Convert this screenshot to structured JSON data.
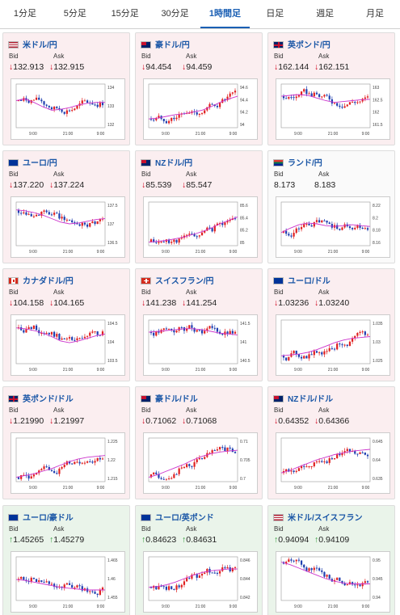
{
  "tabs": [
    {
      "label": "1分足",
      "active": false
    },
    {
      "label": "5分足",
      "active": false
    },
    {
      "label": "15分足",
      "active": false
    },
    {
      "label": "30分足",
      "active": false
    },
    {
      "label": "1時間足",
      "active": true
    },
    {
      "label": "日足",
      "active": false
    },
    {
      "label": "週足",
      "active": false
    },
    {
      "label": "月足",
      "active": false
    }
  ],
  "bid_label": "Bid",
  "ask_label": "Ask",
  "down_arrow": "↓",
  "up_arrow": "↑",
  "colors": {
    "down": "#d0021b",
    "up": "#2e9b36",
    "link": "#1a56a6",
    "ma": "#cc33cc",
    "candle_up": "#e02020",
    "candle_down": "#1f3fb0"
  },
  "pairs": [
    {
      "name": "米ドル/円",
      "flag": "us",
      "dir": "down",
      "bid": "132.913",
      "ask": "132.915",
      "yticks": [
        "134",
        "133",
        "132"
      ],
      "xticks": [
        "9:00",
        "21:00",
        "9:00"
      ],
      "ma": [
        0.62,
        0.66,
        0.58,
        0.48,
        0.4,
        0.42,
        0.46,
        0.52,
        0.56,
        0.58,
        0.58
      ]
    },
    {
      "name": "豪ドル/円",
      "flag": "au",
      "dir": "down",
      "bid": "94.454",
      "ask": "94.459",
      "yticks": [
        "94.6",
        "94.4",
        "94.2",
        "94"
      ],
      "xticks": [
        "9:00",
        "21:00",
        "9:00"
      ],
      "ma": [
        0.2,
        0.22,
        0.26,
        0.3,
        0.32,
        0.36,
        0.4,
        0.48,
        0.58,
        0.66,
        0.72
      ]
    },
    {
      "name": "英ポンド/円",
      "flag": "uk",
      "dir": "down",
      "bid": "162.144",
      "ask": "162.151",
      "yticks": [
        "163",
        "162.5",
        "162",
        "161.5"
      ],
      "xticks": [
        "9:00",
        "21:00",
        "9:00"
      ],
      "ma": [
        0.72,
        0.74,
        0.76,
        0.74,
        0.68,
        0.62,
        0.58,
        0.6,
        0.62,
        0.64,
        0.65
      ]
    },
    {
      "name": "ユーロ/円",
      "flag": "eu",
      "dir": "down",
      "bid": "137.220",
      "ask": "137.224",
      "yticks": [
        "137.5",
        "137",
        "136.5"
      ],
      "xticks": [
        "9:00",
        "21:00",
        "9:00"
      ],
      "ma": [
        0.82,
        0.8,
        0.76,
        0.7,
        0.62,
        0.54,
        0.5,
        0.52,
        0.56,
        0.6,
        0.62
      ]
    },
    {
      "name": "NZドル/円",
      "flag": "nz",
      "dir": "down",
      "bid": "85.539",
      "ask": "85.547",
      "yticks": [
        "85.6",
        "85.4",
        "85.2",
        "85"
      ],
      "xticks": [
        "9:00",
        "21:00",
        "9:00"
      ],
      "ma": [
        0.08,
        0.1,
        0.12,
        0.16,
        0.2,
        0.26,
        0.32,
        0.4,
        0.5,
        0.58,
        0.66
      ]
    },
    {
      "name": "ランド/円",
      "flag": "za",
      "dir": "neutral",
      "bid": "8.173",
      "ask": "8.183",
      "yticks": [
        "8.22",
        "8.2",
        "8.18",
        "8.16"
      ],
      "xticks": [
        "9:00",
        "21:00",
        "9:00"
      ],
      "ma": [
        0.3,
        0.4,
        0.48,
        0.52,
        0.5,
        0.46,
        0.44,
        0.46,
        0.48,
        0.46,
        0.44
      ]
    },
    {
      "name": "カナダドル/円",
      "flag": "ca",
      "dir": "down",
      "bid": "104.158",
      "ask": "104.165",
      "yticks": [
        "104.5",
        "104",
        "103.5"
      ],
      "xticks": [
        "9:00",
        "21:00",
        "9:00"
      ],
      "ma": [
        0.82,
        0.8,
        0.76,
        0.7,
        0.62,
        0.52,
        0.48,
        0.52,
        0.58,
        0.64,
        0.68
      ]
    },
    {
      "name": "スイスフラン/円",
      "flag": "ch",
      "dir": "down",
      "bid": "141.238",
      "ask": "141.254",
      "yticks": [
        "141.5",
        "141",
        "140.5"
      ],
      "xticks": [
        "9:00",
        "21:00",
        "9:00"
      ],
      "ma": [
        0.72,
        0.74,
        0.76,
        0.78,
        0.8,
        0.8,
        0.78,
        0.74,
        0.7,
        0.68,
        0.66
      ]
    },
    {
      "name": "ユーロ/ドル",
      "flag": "eu",
      "dir": "down",
      "bid": "1.03236",
      "ask": "1.03240",
      "yticks": [
        "1.035",
        "1.03",
        "1.025"
      ],
      "xticks": [
        "9:00",
        "21:00",
        "9:00"
      ],
      "ma": [
        0.18,
        0.2,
        0.22,
        0.26,
        0.32,
        0.4,
        0.48,
        0.54,
        0.58,
        0.6,
        0.62
      ]
    },
    {
      "name": "英ポンド/ドル",
      "flag": "uk",
      "dir": "down",
      "bid": "1.21990",
      "ask": "1.21997",
      "yticks": [
        "1.225",
        "1.22",
        "1.215"
      ],
      "xticks": [
        "9:00",
        "21:00",
        "9:00"
      ],
      "ma": [
        0.1,
        0.14,
        0.18,
        0.24,
        0.3,
        0.38,
        0.46,
        0.52,
        0.56,
        0.58,
        0.6
      ]
    },
    {
      "name": "豪ドル/ドル",
      "flag": "au",
      "dir": "down",
      "bid": "0.71062",
      "ask": "0.71068",
      "yticks": [
        "0.71",
        "0.705",
        "0.7"
      ],
      "xticks": [
        "9:00",
        "21:00",
        "9:00"
      ],
      "ma": [
        0.1,
        0.16,
        0.24,
        0.32,
        0.4,
        0.5,
        0.58,
        0.64,
        0.68,
        0.7,
        0.72
      ]
    },
    {
      "name": "NZドル/ドル",
      "flag": "nz",
      "dir": "down",
      "bid": "0.64352",
      "ask": "0.64366",
      "yticks": [
        "0.645",
        "0.64",
        "0.635"
      ],
      "xticks": [
        "9:00",
        "21:00",
        "9:00"
      ],
      "ma": [
        0.2,
        0.26,
        0.34,
        0.42,
        0.5,
        0.56,
        0.62,
        0.66,
        0.7,
        0.72,
        0.74
      ]
    },
    {
      "name": "ユーロ/豪ドル",
      "flag": "eu",
      "dir": "up",
      "bid": "1.45265",
      "ask": "1.45279",
      "yticks": [
        "1.465",
        "1.46",
        "1.455"
      ],
      "xticks": [
        "9:00",
        "21:00",
        "9:00"
      ],
      "ma": [
        0.48,
        0.46,
        0.42,
        0.38,
        0.34,
        0.3,
        0.28,
        0.26,
        0.24,
        0.24,
        0.24
      ]
    },
    {
      "name": "ユーロ/英ポンド",
      "flag": "eu",
      "dir": "up",
      "bid": "0.84623",
      "ask": "0.84631",
      "yticks": [
        "0.846",
        "0.844",
        "0.842"
      ],
      "xticks": [
        "9:00",
        "21:00",
        "9:00"
      ],
      "ma": [
        0.3,
        0.32,
        0.36,
        0.42,
        0.5,
        0.58,
        0.64,
        0.68,
        0.7,
        0.72,
        0.72
      ]
    },
    {
      "name": "米ドル/スイスフラン",
      "flag": "us",
      "dir": "up",
      "bid": "0.94094",
      "ask": "0.94109",
      "yticks": [
        "0.95",
        "0.945",
        "0.94"
      ],
      "xticks": [
        "9:00",
        "21:00",
        "9:00"
      ],
      "ma": [
        0.88,
        0.82,
        0.74,
        0.66,
        0.58,
        0.5,
        0.44,
        0.4,
        0.38,
        0.38,
        0.38
      ]
    }
  ]
}
